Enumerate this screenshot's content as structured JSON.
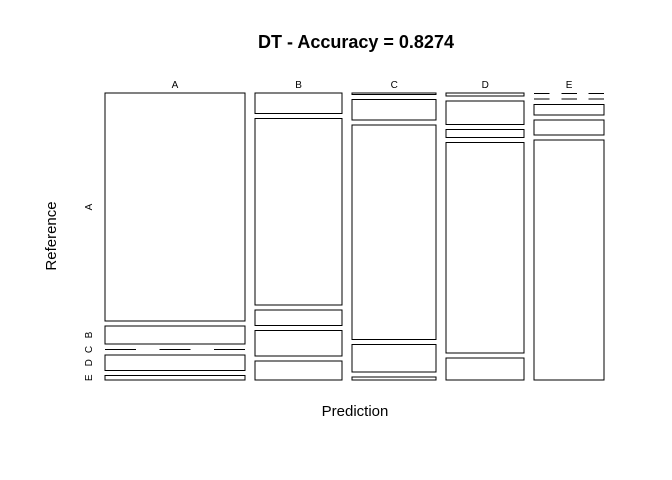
{
  "chart_data": {
    "type": "mosaic",
    "title": "DT - Accuracy = 0.8274",
    "xlabel": "Prediction",
    "ylabel": "Reference",
    "categories_x": [
      "A",
      "B",
      "C",
      "D",
      "E"
    ],
    "categories_y": [
      "A",
      "B",
      "C",
      "D",
      "E"
    ],
    "column_shares": [
      0.305,
      0.19,
      0.183,
      0.17,
      0.152
    ],
    "cells": {
      "A": {
        "A": 0.811,
        "B": 0.063,
        "C": 0.004,
        "D": 0.055,
        "E": 0.016
      },
      "B": {
        "A": 0.071,
        "B": 0.653,
        "C": 0.054,
        "D": 0.089,
        "E": 0.066
      },
      "C": {
        "A": 0.005,
        "B": 0.074,
        "C": 0.777,
        "D": 0.101,
        "E": 0.01
      },
      "D": {
        "A": 0.011,
        "B": 0.087,
        "C": 0.031,
        "D": 0.781,
        "E": 0.082
      },
      "E": {
        "A": 0.002,
        "B": 0.004,
        "C": 0.039,
        "D": 0.054,
        "E": 0.886
      }
    }
  }
}
